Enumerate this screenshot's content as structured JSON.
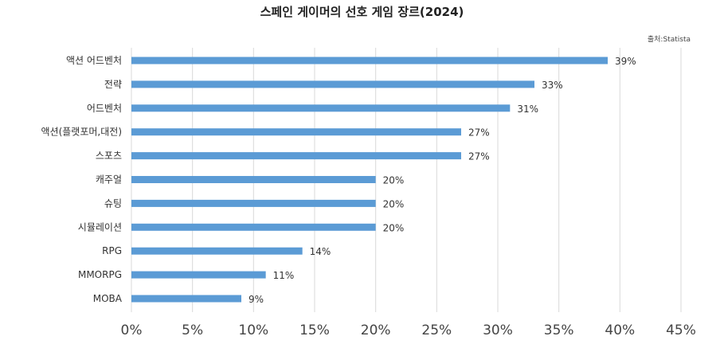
{
  "chart_data": {
    "type": "bar",
    "orientation": "horizontal",
    "title": "스페인 게이머의 선호 게임 장르(2024)",
    "source": "출처:Statista",
    "categories": [
      "액션 어드벤처",
      "전략",
      "어드벤처",
      "액션(플랫포머,대전)",
      "스포츠",
      "캐주얼",
      "슈팅",
      "시뮬레이션",
      "RPG",
      "MMORPG",
      "MOBA"
    ],
    "values": [
      39,
      33,
      31,
      27,
      27,
      20,
      20,
      20,
      14,
      11,
      9
    ],
    "value_labels": [
      "39%",
      "33%",
      "31%",
      "27%",
      "27%",
      "20%",
      "20%",
      "20%",
      "14%",
      "11%",
      "9%"
    ],
    "xlim": [
      0,
      45
    ],
    "x_ticks": [
      0,
      5,
      10,
      15,
      20,
      25,
      30,
      35,
      40,
      45
    ],
    "x_tick_labels": [
      "0%",
      "5%",
      "10%",
      "15%",
      "20%",
      "25%",
      "30%",
      "35%",
      "40%",
      "45%"
    ],
    "grid": "vertical",
    "bar_color": "#5b9bd5",
    "grid_color": "#d9d9d9"
  }
}
